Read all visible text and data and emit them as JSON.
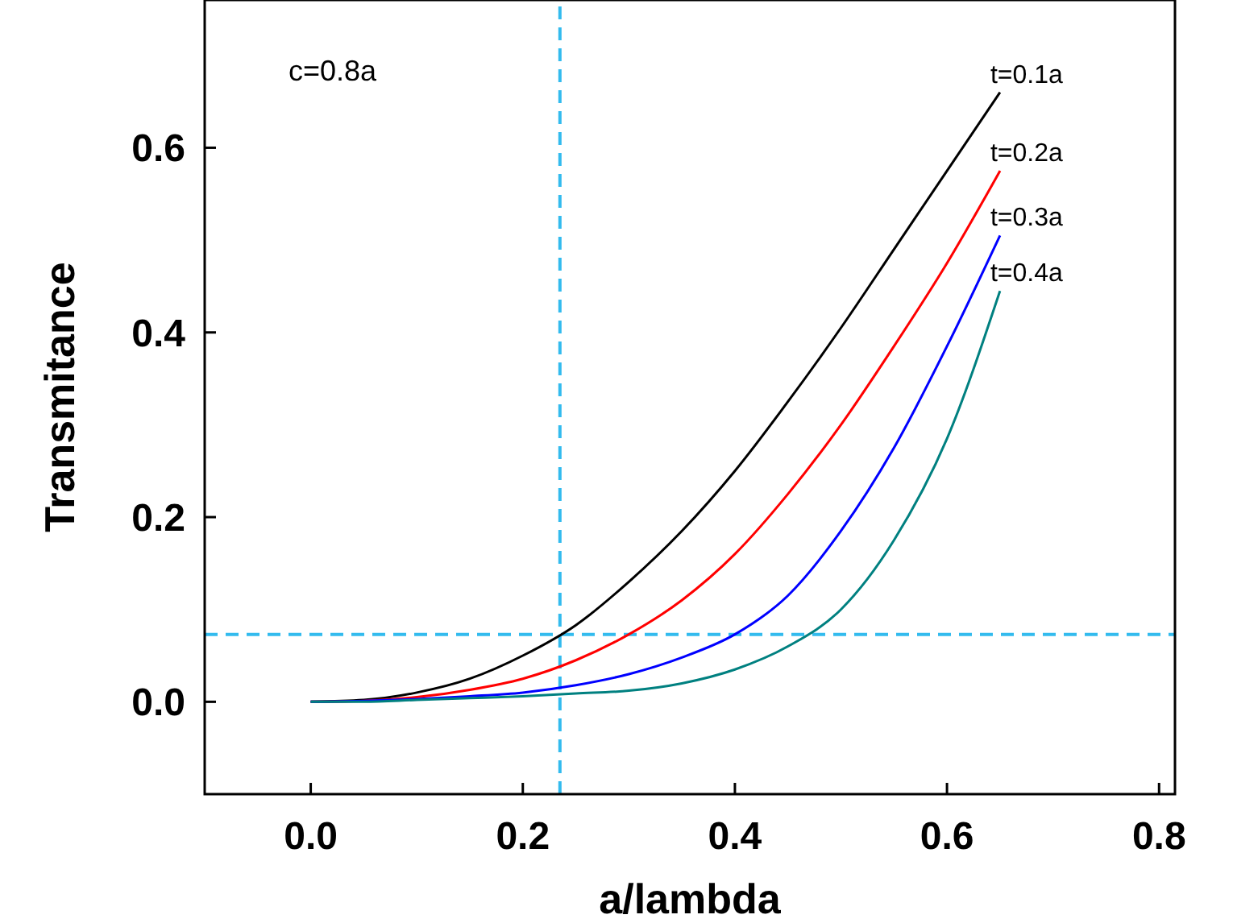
{
  "chart_data": {
    "type": "line",
    "xlabel": "a/lambda",
    "ylabel": "Transmitance",
    "annotations": [
      "c=0.8a"
    ],
    "xlim": [
      -0.1,
      0.815
    ],
    "ylim": [
      -0.1,
      0.76
    ],
    "xticks": [
      {
        "value": 0,
        "label": "0.0"
      },
      {
        "value": 0.2,
        "label": "0.2"
      },
      {
        "value": 0.4,
        "label": "0.4"
      },
      {
        "value": 0.6,
        "label": "0.6"
      },
      {
        "value": 0.8,
        "label": "0.8"
      }
    ],
    "yticks": [
      {
        "value": 0,
        "label": "0.0"
      },
      {
        "value": 0.2,
        "label": "0.2"
      },
      {
        "value": 0.4,
        "label": "0.4"
      },
      {
        "value": 0.6,
        "label": "0.6"
      }
    ],
    "x": [
      0,
      0.05,
      0.1,
      0.15,
      0.2,
      0.25,
      0.3,
      0.35,
      0.4,
      0.45,
      0.5,
      0.55,
      0.6,
      0.65
    ],
    "series": [
      {
        "name": "t=0.1a",
        "color": "#000000",
        "values": [
          0,
          0.002,
          0.01,
          0.025,
          0.05,
          0.083,
          0.13,
          0.185,
          0.25,
          0.325,
          0.405,
          0.49,
          0.575,
          0.66
        ]
      },
      {
        "name": "t=0.2a",
        "color": "#ff0000",
        "values": [
          0,
          0.001,
          0.005,
          0.013,
          0.025,
          0.045,
          0.073,
          0.11,
          0.16,
          0.225,
          0.3,
          0.385,
          0.475,
          0.575
        ]
      },
      {
        "name": "t=0.3a",
        "color": "#0000ff",
        "values": [
          0,
          0.001,
          0.003,
          0.006,
          0.01,
          0.018,
          0.03,
          0.048,
          0.073,
          0.115,
          0.185,
          0.275,
          0.385,
          0.505
        ]
      },
      {
        "name": "t=0.4a",
        "color": "#008080",
        "values": [
          0,
          0,
          0.002,
          0.004,
          0.006,
          0.009,
          0.012,
          0.02,
          0.035,
          0.06,
          0.1,
          0.175,
          0.285,
          0.445
        ]
      }
    ],
    "ref_lines": [
      {
        "axis": "x",
        "value": 0.235,
        "color": "#33bbee",
        "line_style": "dashed"
      },
      {
        "axis": "y",
        "value": 0.073,
        "color": "#33bbee",
        "line_style": "dashed"
      }
    ],
    "grid": false,
    "marker": "none",
    "line_style": "solid"
  }
}
